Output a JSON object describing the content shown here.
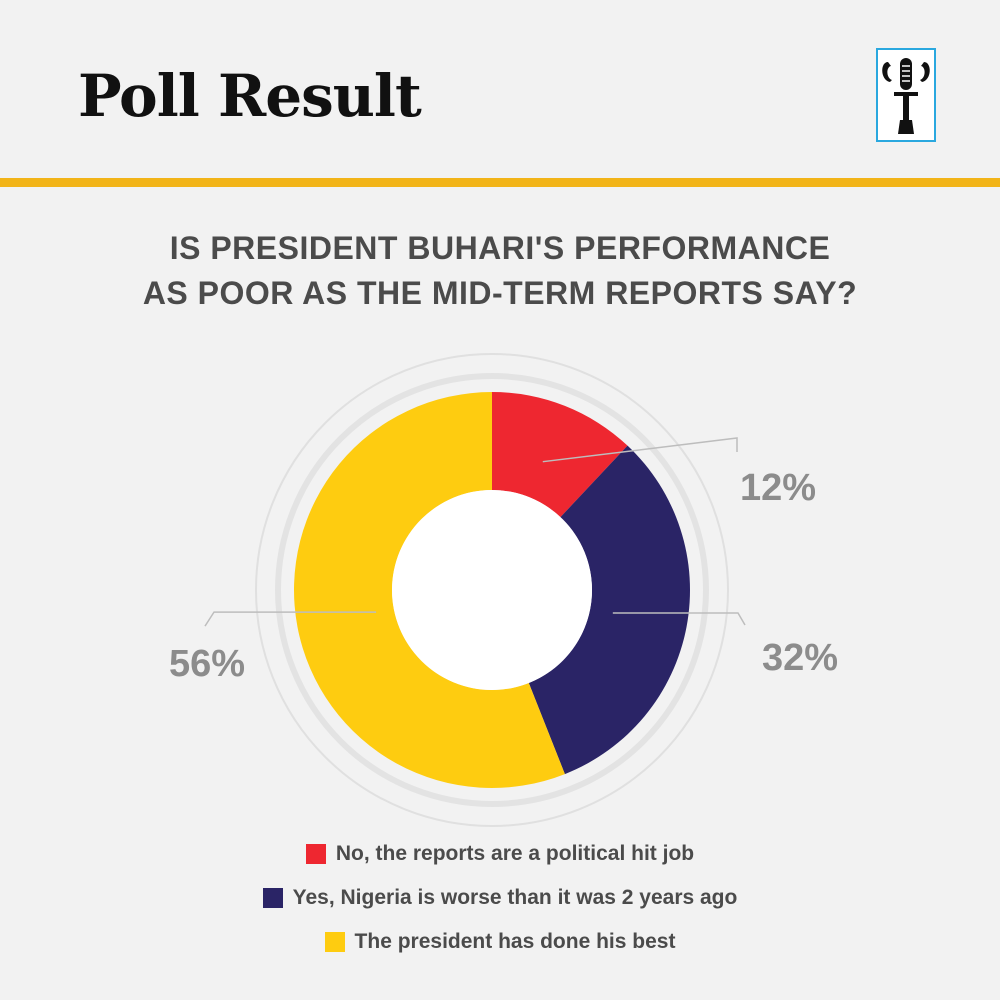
{
  "header": {
    "title": "Poll Result"
  },
  "logo": {
    "icon": "microphone-emblem-icon"
  },
  "colors": {
    "accent_bar": "#f2b418",
    "logo_border": "#2aa8df",
    "no": "#ee2730",
    "yes": "#2a2466",
    "best": "#fecc10"
  },
  "chart_data": {
    "type": "pie",
    "title_lines": [
      "IS PRESIDENT BUHARI'S PERFORMANCE",
      "AS POOR AS THE MID-TERM REPORTS SAY?"
    ],
    "donut": true,
    "categories": [
      "No, the reports are a political hit job",
      "Yes, Nigeria is worse than it was 2 years ago",
      "The president has done his best"
    ],
    "values": [
      12,
      32,
      56
    ],
    "labels": [
      "12%",
      "32%",
      "56%"
    ],
    "colors": [
      "#ee2730",
      "#2a2466",
      "#fecc10"
    ],
    "legend_position": "bottom-center"
  }
}
